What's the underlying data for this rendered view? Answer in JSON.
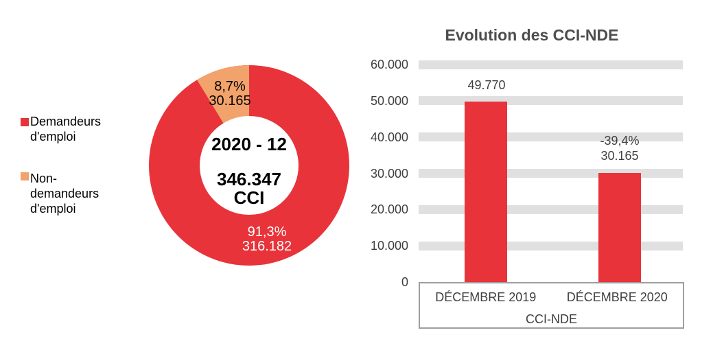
{
  "colors": {
    "red": "#E8333A",
    "orange": "#F2A36B",
    "band_gray": "#E0E0E0",
    "box_border": "#9E9E9E",
    "title_text": "#4D4D4D",
    "axis_text": "#3F3F3F",
    "black": "#000000",
    "white": "#FFFFFF"
  },
  "legend": {
    "items": [
      {
        "label": "Demandeurs d'emploi"
      },
      {
        "label": "Non-demandeurs d'emploi"
      }
    ]
  },
  "donut": {
    "center": {
      "line1": "2020 - 12",
      "line2": "346.347",
      "line3": "CCI"
    },
    "slices": [
      {
        "name": "Demandeurs d'emploi",
        "pct_label": "91,3%",
        "value_label": "316.182"
      },
      {
        "name": "Non-demandeurs d'emploi",
        "pct_label": "8,7%",
        "value_label": "30.165"
      }
    ]
  },
  "bar_chart": {
    "title": "Evolution des CCI-NDE",
    "y_ticks": [
      "60.000",
      "50.000",
      "40.000",
      "30.000",
      "20.000",
      "10.000",
      "0"
    ],
    "categories": [
      "DÉCEMBRE 2019",
      "DÉCEMBRE 2020"
    ],
    "axis_group_label": "CCI-NDE",
    "bars": [
      {
        "value_label": "49.770"
      },
      {
        "delta_label": "-39,4%",
        "value_label": "30.165"
      }
    ]
  },
  "chart_data": [
    {
      "type": "pie",
      "subtype": "donut",
      "labels": [
        "Demandeurs d'emploi",
        "Non-demandeurs d'emploi"
      ],
      "values": [
        316182,
        30165
      ],
      "percent_labels": [
        "91,3%",
        "8,7%"
      ],
      "total": 346347,
      "center_text": [
        "2020 - 12",
        "346.347",
        "CCI"
      ],
      "colors": [
        "#E8333A",
        "#F2A36B"
      ],
      "legend_position": "left"
    },
    {
      "type": "bar",
      "title": "Evolution des CCI-NDE",
      "categories": [
        "DÉCEMBRE 2019",
        "DÉCEMBRE 2020"
      ],
      "values": [
        49770,
        30165
      ],
      "data_labels": [
        "49.770",
        "-39,4% 30.165"
      ],
      "change_label": "-39,4%",
      "xlabel": "CCI-NDE",
      "ylim": [
        0,
        60000
      ],
      "y_tick_values": [
        60000,
        50000,
        40000,
        30000,
        20000,
        10000,
        0
      ],
      "bar_color": "#E8333A",
      "grid": "horizontal-bands",
      "legend_position": "none"
    }
  ]
}
